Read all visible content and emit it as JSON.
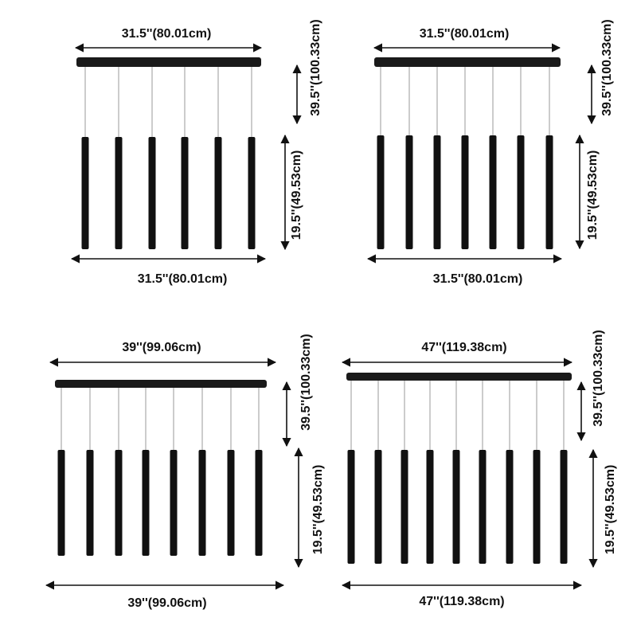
{
  "panels": [
    {
      "top_width": "31.5''(80.01cm)",
      "bottom_width": "31.5''(80.01cm)",
      "cord_length": "39.5''(100.33cm)",
      "tube_length": "19.5''(49.53cm)"
    },
    {
      "top_width": "31.5''(80.01cm)",
      "bottom_width": "31.5''(80.01cm)",
      "cord_length": "39.5''(100.33cm)",
      "tube_length": "19.5''(49.53cm)"
    },
    {
      "top_width": "39''(99.06cm)",
      "bottom_width": "39''(99.06cm)",
      "cord_length": "39.5''(100.33cm)",
      "tube_length": "19.5''(49.53cm)"
    },
    {
      "top_width": "47''(119.38cm)",
      "bottom_width": "47''(119.38cm)",
      "cord_length": "39.5''(100.33cm)",
      "tube_length": "19.5''(49.53cm)"
    }
  ]
}
